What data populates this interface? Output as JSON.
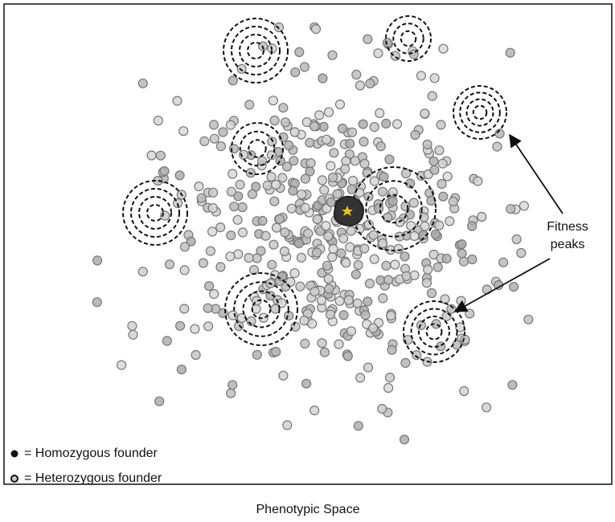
{
  "annotation": {
    "lines": [
      "Fitness",
      "peaks"
    ]
  },
  "legend": {
    "homozygous": "= Homozygous founder",
    "heterozygous": "= Heterozygous founder"
  },
  "axis_label": "Phenotypic Space"
}
